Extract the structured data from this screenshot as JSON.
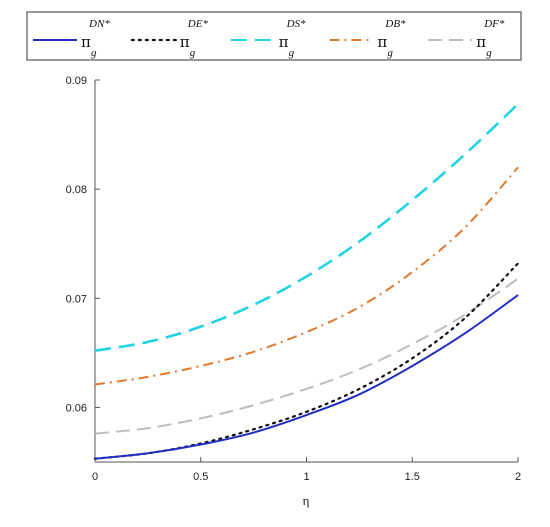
{
  "chart_data": {
    "type": "line",
    "title": "",
    "xlabel": "η",
    "ylabel": "",
    "xlim": [
      0,
      2
    ],
    "ylim": [
      0.055,
      0.09
    ],
    "x_ticks": [
      "0",
      "0.5",
      "1",
      "1.5",
      "2"
    ],
    "y_ticks": [
      "0.06",
      "0.07",
      "0.08",
      "0.09"
    ],
    "x_tick_values": [
      0,
      0.5,
      1,
      1.5,
      2
    ],
    "y_tick_values": [
      0.06,
      0.07,
      0.08,
      0.09
    ],
    "grid": false,
    "legend_placement": "top",
    "x": [
      0,
      0.25,
      0.5,
      0.75,
      1.0,
      1.25,
      1.5,
      1.75,
      2.0
    ],
    "series": [
      {
        "name": "π_g^{DN*}",
        "base": "π",
        "sub": "g",
        "sup": "DN*",
        "color": "#1f2fbf",
        "style": "solid",
        "values": [
          0.0553,
          0.0558,
          0.0566,
          0.0577,
          0.0593,
          0.0612,
          0.0638,
          0.0668,
          0.0703
        ]
      },
      {
        "name": "π_g^{DE*}",
        "base": "π",
        "sub": "g",
        "sup": "DE*",
        "color": "#111111",
        "style": "dotted",
        "values": [
          0.0553,
          0.0558,
          0.0567,
          0.058,
          0.0596,
          0.0617,
          0.0645,
          0.0682,
          0.0732
        ]
      },
      {
        "name": "π_g^{DS*}",
        "base": "π",
        "sub": "g",
        "sup": "DS*",
        "color": "#22d3e6",
        "style": "dash",
        "values": [
          0.0652,
          0.066,
          0.0674,
          0.0694,
          0.072,
          0.0752,
          0.079,
          0.0832,
          0.0878
        ]
      },
      {
        "name": "π_g^{DB*}",
        "base": "π",
        "sub": "g",
        "sup": "DB*",
        "color": "#e07a2e",
        "style": "dashdot",
        "values": [
          0.0621,
          0.0628,
          0.0638,
          0.0651,
          0.0669,
          0.0692,
          0.0724,
          0.0765,
          0.082
        ]
      },
      {
        "name": "π_g^{DF*}",
        "base": "π",
        "sub": "g",
        "sup": "DF*",
        "color": "#bdbdbd",
        "style": "longdash",
        "values": [
          0.0576,
          0.0581,
          0.059,
          0.0602,
          0.0617,
          0.0635,
          0.0658,
          0.0685,
          0.0718
        ]
      }
    ]
  }
}
